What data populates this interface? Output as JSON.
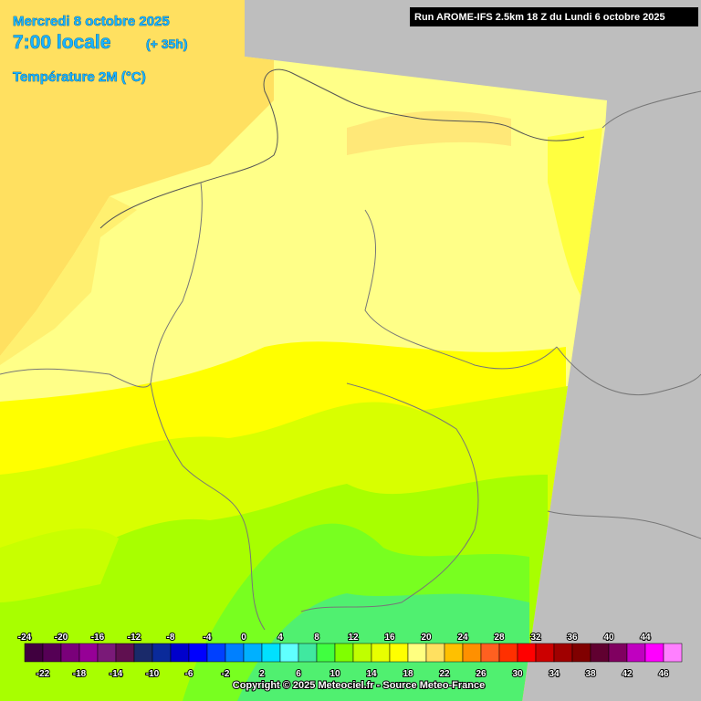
{
  "header": {
    "date": "Mercredi 8 octobre 2025",
    "time": "7:00 locale",
    "lead": "(+ 35h)",
    "parameter": "Température 2M (°C)"
  },
  "run": "Run AROME-IFS 2.5km 18 Z du Lundi 6 octobre 2025",
  "legend": {
    "items": [
      {
        "value": -24,
        "color": "#40003f"
      },
      {
        "value": -22,
        "color": "#550055"
      },
      {
        "value": -20,
        "color": "#7a007a"
      },
      {
        "value": -18,
        "color": "#960096"
      },
      {
        "value": -16,
        "color": "#7a1a78"
      },
      {
        "value": -14,
        "color": "#601050"
      },
      {
        "value": -12,
        "color": "#1a2a6a"
      },
      {
        "value": -10,
        "color": "#0a2a9a"
      },
      {
        "value": -8,
        "color": "#0000cc"
      },
      {
        "value": -6,
        "color": "#0000ff"
      },
      {
        "value": -4,
        "color": "#0040ff"
      },
      {
        "value": -2,
        "color": "#0080ff"
      },
      {
        "value": 0,
        "color": "#00b0ff"
      },
      {
        "value": 2,
        "color": "#00e0ff"
      },
      {
        "value": 4,
        "color": "#60ffff"
      },
      {
        "value": 6,
        "color": "#40e8a0"
      },
      {
        "value": 8,
        "color": "#40ff40"
      },
      {
        "value": 10,
        "color": "#80ff00"
      },
      {
        "value": 12,
        "color": "#c0ff00"
      },
      {
        "value": 14,
        "color": "#e8ff00"
      },
      {
        "value": 16,
        "color": "#ffff00"
      },
      {
        "value": 18,
        "color": "#ffff80"
      },
      {
        "value": 20,
        "color": "#ffe060"
      },
      {
        "value": 22,
        "color": "#ffc000"
      },
      {
        "value": 24,
        "color": "#ff9000"
      },
      {
        "value": 26,
        "color": "#ff6020"
      },
      {
        "value": 28,
        "color": "#ff3000"
      },
      {
        "value": 30,
        "color": "#ff0000"
      },
      {
        "value": 32,
        "color": "#cc0000"
      },
      {
        "value": 34,
        "color": "#a00000"
      },
      {
        "value": 36,
        "color": "#800000"
      },
      {
        "value": 38,
        "color": "#600030"
      },
      {
        "value": 40,
        "color": "#800060"
      },
      {
        "value": 42,
        "color": "#c000c0"
      },
      {
        "value": 44,
        "color": "#ff00ff"
      },
      {
        "value": 46,
        "color": "#ff80ff"
      }
    ]
  },
  "copyright": "Copyright © 2025 Meteociel.fr - Source Meteo-France"
}
